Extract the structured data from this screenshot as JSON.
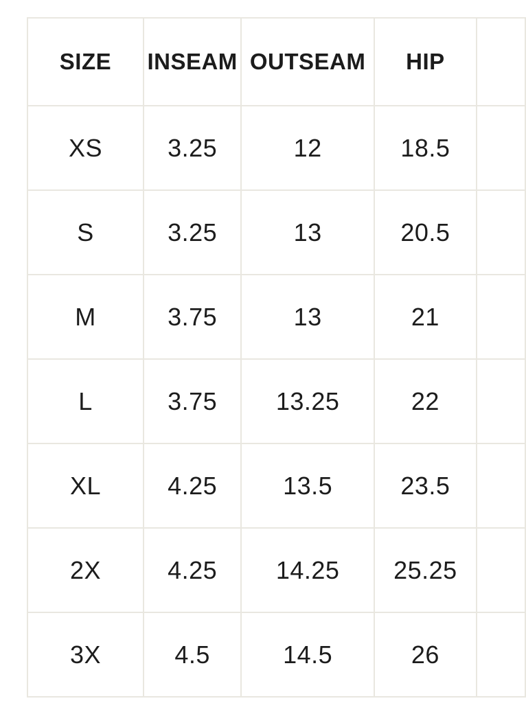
{
  "colors": {
    "background": "#ffffff",
    "grid_border": "#e9e7e0",
    "text": "#1c1c1c"
  },
  "chart_data": {
    "type": "table",
    "columns": [
      "SIZE",
      "INSEAM",
      "OUTSEAM",
      "HIP"
    ],
    "rows": [
      [
        "XS",
        "3.25",
        "12",
        "18.5"
      ],
      [
        "S",
        "3.25",
        "13",
        "20.5"
      ],
      [
        "M",
        "3.75",
        "13",
        "21"
      ],
      [
        "L",
        "3.75",
        "13.25",
        "22"
      ],
      [
        "XL",
        "4.25",
        "13.5",
        "23.5"
      ],
      [
        "2X",
        "4.25",
        "14.25",
        "25.25"
      ],
      [
        "3X",
        "4.5",
        "14.5",
        "26"
      ]
    ],
    "layout": {
      "grid": true,
      "partial_right_column_visible": true
    }
  }
}
